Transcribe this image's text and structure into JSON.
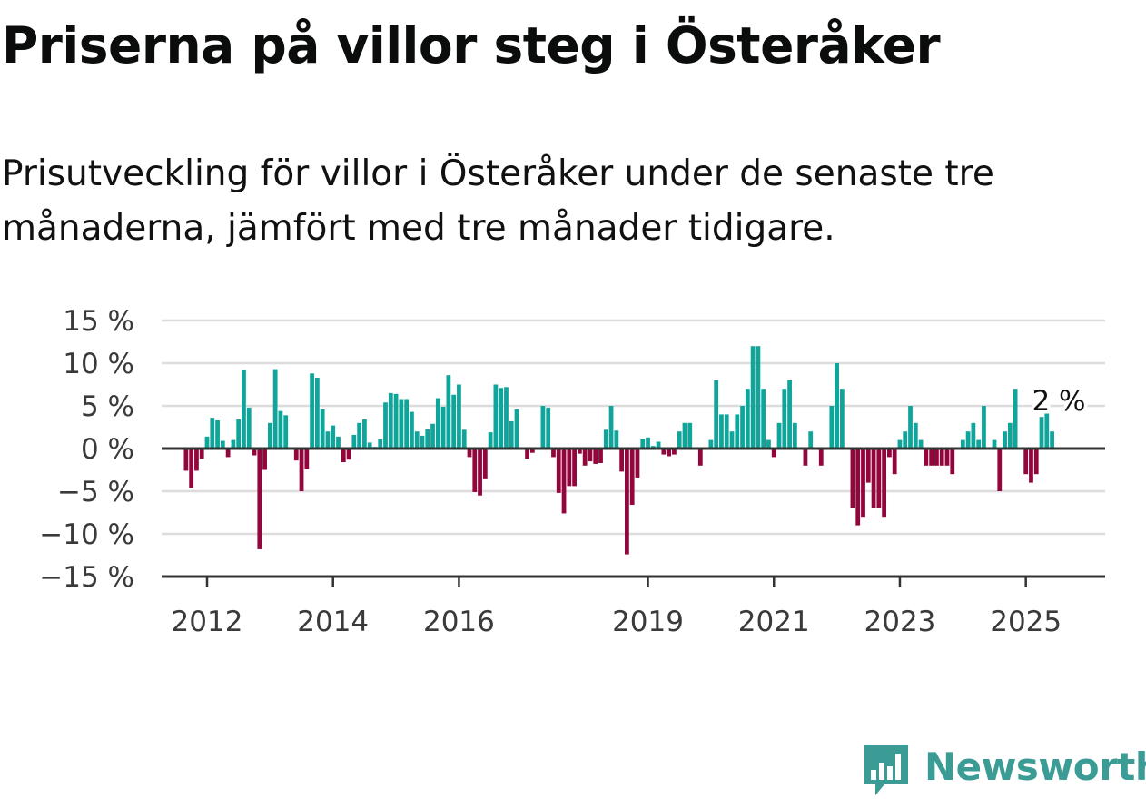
{
  "title": "Priserna på villor steg i Österåker",
  "subtitle": "Prisutveckling för villor i Österåker under de senaste tre månaderna, jämfört med tre månader tidigare.",
  "brand": {
    "name": "Newsworthy",
    "logo_icon": "bar-chart-speech-bubble-icon",
    "color": "#3a9c95"
  },
  "colors": {
    "positive": "#10a59b",
    "negative": "#92063d",
    "grid": "#dcdcdc",
    "axis": "#333333"
  },
  "chart_data": {
    "type": "bar",
    "ylim": [
      -15,
      15
    ],
    "y_ticks": [
      15,
      10,
      5,
      0,
      -5,
      -10,
      -15
    ],
    "y_tick_labels": [
      "15 %",
      "10 %",
      "5 %",
      "0 %",
      "−5 %",
      "−10 %",
      "−15 %"
    ],
    "x_ticks": [
      "2012",
      "2014",
      "2016",
      "2019",
      "2021",
      "2023",
      "2025"
    ],
    "grid": true,
    "value_label": "2 %",
    "start": "2011-09",
    "frequency": "monthly",
    "values": [
      -2.6,
      -4.6,
      -2.6,
      -1.2,
      1.4,
      3.6,
      3.3,
      0.9,
      -1.0,
      1.0,
      3.4,
      9.2,
      4.8,
      -0.8,
      -11.8,
      -2.5,
      3.0,
      9.3,
      4.4,
      3.9,
      0.0,
      -1.4,
      -5.0,
      -2.4,
      8.8,
      8.3,
      4.6,
      2.0,
      2.7,
      1.4,
      -1.6,
      -1.3,
      1.6,
      3.0,
      3.4,
      0.7,
      0.2,
      1.1,
      5.4,
      6.5,
      6.4,
      5.8,
      5.8,
      4.3,
      2.0,
      1.5,
      2.3,
      2.9,
      5.9,
      4.9,
      8.6,
      6.3,
      7.5,
      2.2,
      -1.0,
      -5.1,
      -5.5,
      -3.6,
      1.9,
      7.5,
      7.1,
      7.2,
      3.2,
      4.6,
      0.0,
      -1.2,
      -0.5,
      0.0,
      5.0,
      4.8,
      -1.0,
      -5.2,
      -7.6,
      -4.4,
      -4.4,
      -0.6,
      -2.0,
      -1.5,
      -1.8,
      -1.7,
      2.2,
      5.0,
      2.1,
      -2.7,
      -12.4,
      -6.6,
      -3.4,
      1.1,
      1.3,
      0.3,
      0.8,
      -0.7,
      -0.9,
      -0.7,
      2.0,
      3.0,
      3.0,
      0.0,
      -2.0,
      0.0,
      1.0,
      8.0,
      4.0,
      4.0,
      2.0,
      4.0,
      5.0,
      7.0,
      12.0,
      12.0,
      7.0,
      1.0,
      -1.0,
      3.0,
      7.0,
      8.0,
      3.0,
      0.0,
      -2.0,
      2.0,
      0.0,
      -2.0,
      0.0,
      5.0,
      10.0,
      7.0,
      0.0,
      -7.0,
      -9.0,
      -8.0,
      -4.0,
      -7.0,
      -7.0,
      -8.0,
      -1.0,
      -3.0,
      1.0,
      2.0,
      5.0,
      3.0,
      1.0,
      -2.0,
      -2.0,
      -2.0,
      -2.0,
      -2.0,
      -3.0,
      0.0,
      1.0,
      2.0,
      3.0,
      1.0,
      5.0,
      0.0,
      1.0,
      -5.0,
      2.0,
      3.0,
      7.0,
      0.0,
      -3.0,
      -4.0,
      -3.0,
      3.7,
      5.0,
      2.0
    ]
  }
}
